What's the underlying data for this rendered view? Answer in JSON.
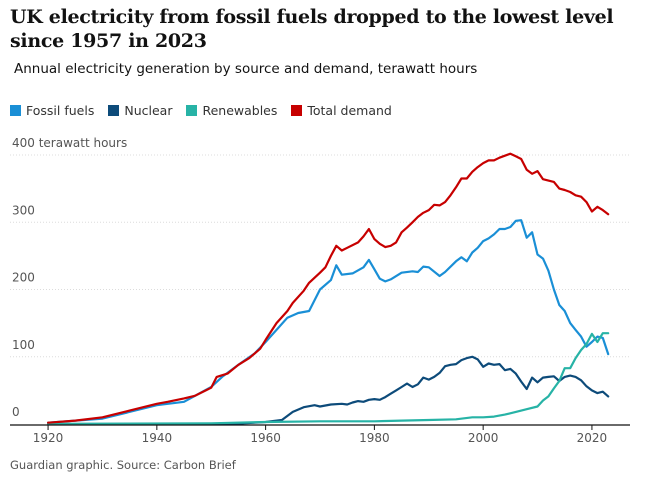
{
  "title": "UK electricity from fossil fuels dropped to the lowest level since 1957 in 2023",
  "subtitle": "Annual electricity generation by source and demand, terawatt hours",
  "source": "Guardian graphic. Source: Carbon Brief",
  "chart_data": {
    "type": "line",
    "title": "UK electricity from fossil fuels dropped to the lowest level since 1957 in 2023",
    "subtitle": "Annual electricity generation by source and demand, terawatt hours",
    "ylabel": "terawatt hours",
    "xlim": [
      1913,
      2027
    ],
    "ylim": [
      -10,
      400
    ],
    "x_ticks": [
      1920,
      1940,
      1960,
      1980,
      2000,
      2020
    ],
    "y_ticks": [
      {
        "value": 400,
        "label": "400 terawatt hours"
      },
      {
        "value": 300,
        "label": "300"
      },
      {
        "value": 200,
        "label": "200"
      },
      {
        "value": 100,
        "label": "100"
      },
      {
        "value": 0,
        "label": "0"
      }
    ],
    "legend_position": "top-left",
    "grid": true,
    "series": [
      {
        "name": "Fossil fuels",
        "color": "#1a8fd6",
        "points": [
          [
            1920,
            2
          ],
          [
            1930,
            8
          ],
          [
            1940,
            28
          ],
          [
            1945,
            33
          ],
          [
            1950,
            55
          ],
          [
            1952,
            70
          ],
          [
            1955,
            88
          ],
          [
            1958,
            105
          ],
          [
            1960,
            122
          ],
          [
            1962,
            140
          ],
          [
            1964,
            158
          ],
          [
            1966,
            165
          ],
          [
            1968,
            168
          ],
          [
            1970,
            200
          ],
          [
            1972,
            214
          ],
          [
            1973,
            236
          ],
          [
            1974,
            222
          ],
          [
            1976,
            224
          ],
          [
            1978,
            233
          ],
          [
            1979,
            244
          ],
          [
            1980,
            230
          ],
          [
            1981,
            216
          ],
          [
            1982,
            212
          ],
          [
            1983,
            215
          ],
          [
            1985,
            225
          ],
          [
            1987,
            227
          ],
          [
            1988,
            226
          ],
          [
            1989,
            234
          ],
          [
            1990,
            233
          ],
          [
            1992,
            220
          ],
          [
            1993,
            226
          ],
          [
            1995,
            242
          ],
          [
            1996,
            248
          ],
          [
            1997,
            242
          ],
          [
            1998,
            255
          ],
          [
            1999,
            262
          ],
          [
            2000,
            272
          ],
          [
            2001,
            276
          ],
          [
            2002,
            282
          ],
          [
            2003,
            290
          ],
          [
            2004,
            290
          ],
          [
            2005,
            293
          ],
          [
            2006,
            302
          ],
          [
            2007,
            303
          ],
          [
            2008,
            277
          ],
          [
            2009,
            285
          ],
          [
            2010,
            252
          ],
          [
            2011,
            246
          ],
          [
            2012,
            228
          ],
          [
            2013,
            200
          ],
          [
            2014,
            177
          ],
          [
            2015,
            168
          ],
          [
            2016,
            150
          ],
          [
            2017,
            140
          ],
          [
            2018,
            130
          ],
          [
            2019,
            115
          ],
          [
            2020,
            122
          ],
          [
            2021,
            130
          ],
          [
            2022,
            128
          ],
          [
            2023,
            104
          ]
        ]
      },
      {
        "name": "Nuclear",
        "color": "#0d4b7a",
        "points": [
          [
            1920,
            0
          ],
          [
            1955,
            0
          ],
          [
            1956,
            1
          ],
          [
            1960,
            3
          ],
          [
            1963,
            6
          ],
          [
            1965,
            18
          ],
          [
            1967,
            25
          ],
          [
            1969,
            28
          ],
          [
            1970,
            26
          ],
          [
            1972,
            29
          ],
          [
            1974,
            30
          ],
          [
            1975,
            29
          ],
          [
            1976,
            32
          ],
          [
            1977,
            34
          ],
          [
            1978,
            33
          ],
          [
            1979,
            36
          ],
          [
            1980,
            37
          ],
          [
            1981,
            36
          ],
          [
            1982,
            40
          ],
          [
            1983,
            45
          ],
          [
            1984,
            50
          ],
          [
            1985,
            55
          ],
          [
            1986,
            60
          ],
          [
            1987,
            55
          ],
          [
            1988,
            59
          ],
          [
            1989,
            69
          ],
          [
            1990,
            66
          ],
          [
            1991,
            70
          ],
          [
            1992,
            76
          ],
          [
            1993,
            86
          ],
          [
            1994,
            88
          ],
          [
            1995,
            89
          ],
          [
            1996,
            95
          ],
          [
            1997,
            98
          ],
          [
            1998,
            100
          ],
          [
            1999,
            96
          ],
          [
            2000,
            85
          ],
          [
            2001,
            90
          ],
          [
            2002,
            88
          ],
          [
            2003,
            89
          ],
          [
            2004,
            80
          ],
          [
            2005,
            82
          ],
          [
            2006,
            75
          ],
          [
            2007,
            63
          ],
          [
            2008,
            52
          ],
          [
            2009,
            69
          ],
          [
            2010,
            62
          ],
          [
            2011,
            69
          ],
          [
            2012,
            70
          ],
          [
            2013,
            71
          ],
          [
            2014,
            64
          ],
          [
            2015,
            70
          ],
          [
            2016,
            72
          ],
          [
            2017,
            70
          ],
          [
            2018,
            65
          ],
          [
            2019,
            56
          ],
          [
            2020,
            50
          ],
          [
            2021,
            46
          ],
          [
            2022,
            48
          ],
          [
            2023,
            41
          ]
        ]
      },
      {
        "name": "Renewables",
        "color": "#27b3a6",
        "points": [
          [
            1920,
            0
          ],
          [
            1950,
            1
          ],
          [
            1960,
            3
          ],
          [
            1970,
            4
          ],
          [
            1980,
            4
          ],
          [
            1985,
            5
          ],
          [
            1990,
            6
          ],
          [
            1995,
            7
          ],
          [
            1998,
            10
          ],
          [
            2000,
            10
          ],
          [
            2002,
            11
          ],
          [
            2004,
            14
          ],
          [
            2006,
            18
          ],
          [
            2008,
            22
          ],
          [
            2010,
            26
          ],
          [
            2011,
            35
          ],
          [
            2012,
            41
          ],
          [
            2013,
            53
          ],
          [
            2014,
            64
          ],
          [
            2015,
            83
          ],
          [
            2016,
            83
          ],
          [
            2017,
            98
          ],
          [
            2018,
            110
          ],
          [
            2019,
            119
          ],
          [
            2020,
            134
          ],
          [
            2021,
            122
          ],
          [
            2022,
            135
          ],
          [
            2023,
            135
          ]
        ]
      },
      {
        "name": "Total demand",
        "color": "#c70000",
        "points": [
          [
            1920,
            2
          ],
          [
            1925,
            5
          ],
          [
            1930,
            10
          ],
          [
            1935,
            20
          ],
          [
            1940,
            30
          ],
          [
            1942,
            33
          ],
          [
            1945,
            38
          ],
          [
            1947,
            42
          ],
          [
            1949,
            50
          ],
          [
            1950,
            54
          ],
          [
            1951,
            70
          ],
          [
            1953,
            75
          ],
          [
            1955,
            88
          ],
          [
            1957,
            98
          ],
          [
            1959,
            112
          ],
          [
            1960,
            125
          ],
          [
            1962,
            150
          ],
          [
            1964,
            168
          ],
          [
            1965,
            180
          ],
          [
            1967,
            198
          ],
          [
            1968,
            210
          ],
          [
            1970,
            225
          ],
          [
            1971,
            233
          ],
          [
            1972,
            250
          ],
          [
            1973,
            265
          ],
          [
            1974,
            258
          ],
          [
            1975,
            262
          ],
          [
            1977,
            270
          ],
          [
            1978,
            279
          ],
          [
            1979,
            290
          ],
          [
            1980,
            275
          ],
          [
            1981,
            268
          ],
          [
            1982,
            263
          ],
          [
            1983,
            265
          ],
          [
            1984,
            270
          ],
          [
            1985,
            285
          ],
          [
            1986,
            292
          ],
          [
            1987,
            300
          ],
          [
            1988,
            308
          ],
          [
            1989,
            314
          ],
          [
            1990,
            318
          ],
          [
            1991,
            326
          ],
          [
            1992,
            325
          ],
          [
            1993,
            330
          ],
          [
            1994,
            340
          ],
          [
            1995,
            352
          ],
          [
            1996,
            365
          ],
          [
            1997,
            365
          ],
          [
            1998,
            375
          ],
          [
            1999,
            382
          ],
          [
            2000,
            388
          ],
          [
            2001,
            392
          ],
          [
            2002,
            392
          ],
          [
            2003,
            396
          ],
          [
            2004,
            399
          ],
          [
            2005,
            402
          ],
          [
            2006,
            398
          ],
          [
            2007,
            394
          ],
          [
            2008,
            378
          ],
          [
            2009,
            372
          ],
          [
            2010,
            376
          ],
          [
            2011,
            364
          ],
          [
            2012,
            362
          ],
          [
            2013,
            360
          ],
          [
            2014,
            350
          ],
          [
            2015,
            348
          ],
          [
            2016,
            345
          ],
          [
            2017,
            340
          ],
          [
            2018,
            338
          ],
          [
            2019,
            330
          ],
          [
            2020,
            316
          ],
          [
            2021,
            323
          ],
          [
            2022,
            318
          ],
          [
            2023,
            312
          ]
        ]
      }
    ]
  }
}
